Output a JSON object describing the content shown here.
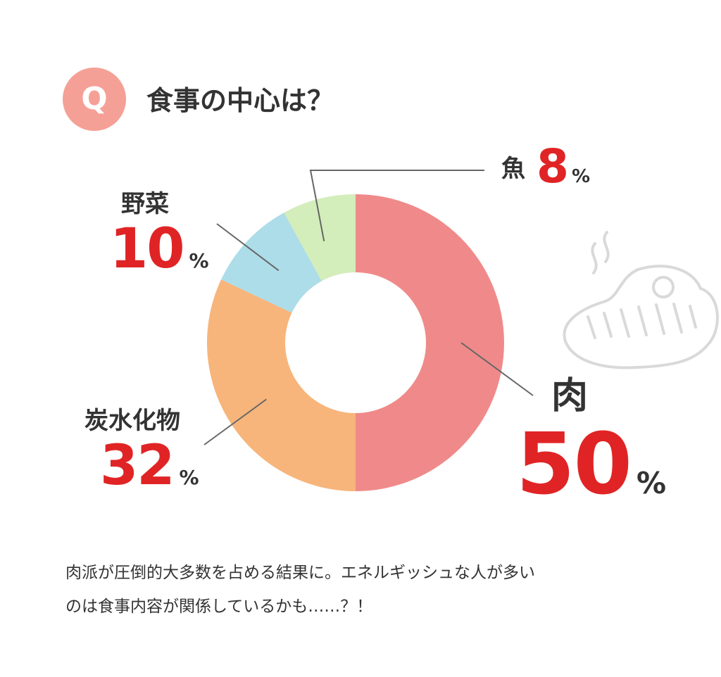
{
  "header": {
    "badge": "Q",
    "title": "食事の中心は？"
  },
  "chart_data": {
    "type": "pie",
    "style": "donut",
    "start": "top",
    "direction": "clockwise",
    "slices": [
      {
        "category": "肉",
        "value": 50,
        "unit": "%",
        "color": "#f08a8a"
      },
      {
        "category": "炭水化物",
        "value": 32,
        "unit": "%",
        "color": "#f7b57b"
      },
      {
        "category": "野菜",
        "value": 10,
        "unit": "%",
        "color": "#acdde8"
      },
      {
        "category": "魚",
        "value": 8,
        "unit": "%",
        "color": "#d3edbb"
      }
    ]
  },
  "colors": {
    "badge": "#f5a096",
    "percent": "#e02425",
    "text": "#333333",
    "leader_line": "#666666",
    "illustration": "#d9d9d9"
  },
  "illustration": "steak-icon",
  "caption": {
    "line1": "肉派が圧倒的大多数を占める結果に。エネルギッシュな人が多い",
    "line2": "のは食事内容が関係しているかも……？！"
  }
}
